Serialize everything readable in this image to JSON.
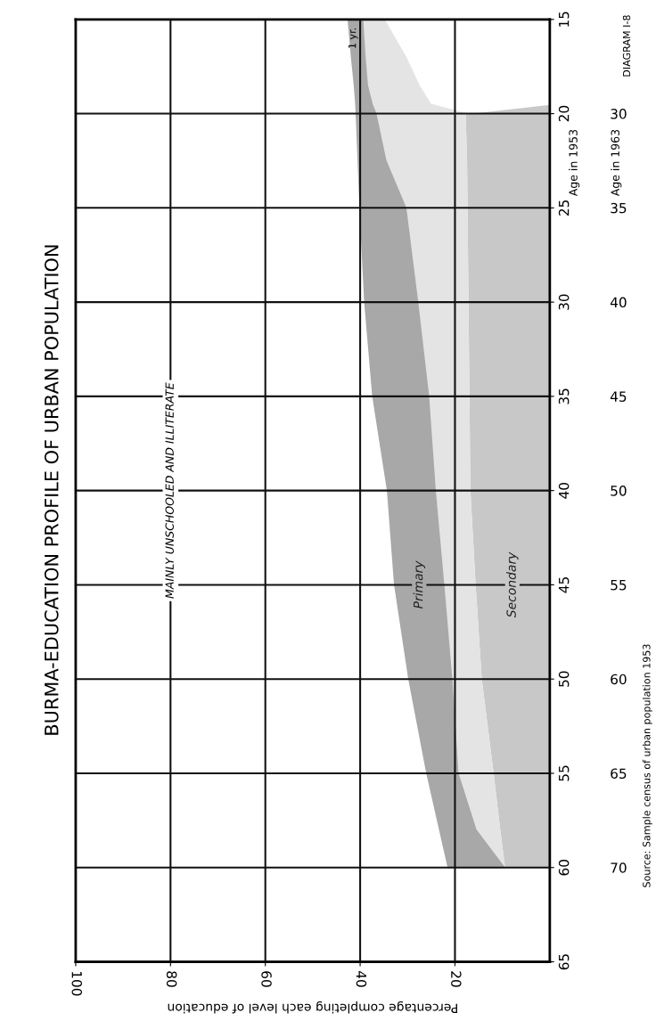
{
  "chart_data": {
    "type": "area",
    "orientation": "horizontal",
    "stacked": true,
    "title": "BURMA-EDUCATION PROFILE OF URBAN POPULATION",
    "xlabel": "Percentage completing each level of education",
    "ylabel": "Age in 1953",
    "y2label": "Age in 1963",
    "x": [
      15,
      17,
      18.5,
      19.5,
      20,
      22.5,
      25,
      30,
      35,
      40,
      45,
      50,
      55,
      58,
      60
    ],
    "series": [
      {
        "name": "Secondary",
        "color": "#c8c8c8",
        "values": [
          0,
          0,
          0,
          0,
          17.9,
          17.6,
          17.5,
          17.3,
          17.1,
          16.9,
          15.8,
          14.5,
          12.0,
          10.6,
          9.6
        ]
      },
      {
        "color": "#ffffff",
        "values": [
          35,
          30.4,
          27.6,
          25.2,
          0,
          0,
          0,
          0,
          0,
          0,
          0,
          0,
          0,
          0,
          0
        ]
      },
      {
        "color": "#e4e4e4",
        "values": [
          4.5,
          8.6,
          10.9,
          12.3,
          18.8,
          17.0,
          12.9,
          10.6,
          8.5,
          7.3,
          6.6,
          6.2,
          7.4,
          5.0,
          0
        ]
      },
      {
        "name": "Primary",
        "color": "#a8a8a8",
        "values": [
          3,
          2.8,
          2.7,
          3.4,
          4.1,
          5.8,
          9.6,
          11.1,
          11.7,
          10,
          10.3,
          9,
          6.5,
          7.6,
          11.8
        ]
      }
    ],
    "xlim": [
      100,
      0
    ],
    "xticks": [
      20,
      40,
      60,
      80,
      100
    ],
    "ylim": [
      65,
      15
    ],
    "yticks": [
      15,
      20,
      25,
      30,
      35,
      40,
      45,
      50,
      55,
      60,
      65
    ],
    "y2lim": [
      75,
      25
    ],
    "y2ticks": [
      30,
      35,
      40,
      45,
      50,
      55,
      60,
      65,
      70
    ],
    "grid": true,
    "annotations": [
      "MAINLY UNSCHOOLED AND ILLITERATE",
      "DIAGRAM I-8",
      "Source: Sample census of urban population 1953",
      {
        "text": "1 yr.",
        "x": 42.5,
        "y": 16
      }
    ]
  }
}
